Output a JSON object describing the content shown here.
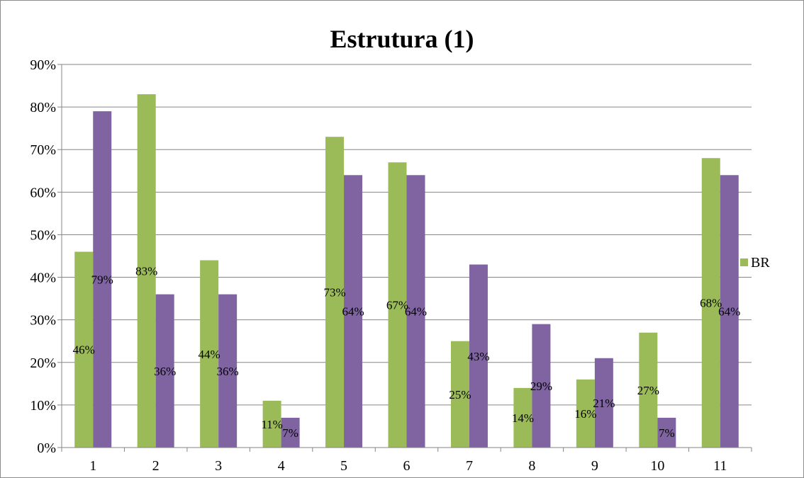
{
  "chart_data": {
    "type": "bar",
    "title": "Estrutura (1)",
    "xlabel": "",
    "ylabel": "",
    "categories": [
      "1",
      "2",
      "3",
      "4",
      "5",
      "6",
      "7",
      "8",
      "9",
      "10",
      "11"
    ],
    "series": [
      {
        "name": "BR",
        "color": "#9bbb59",
        "values": [
          0.46,
          0.83,
          0.44,
          0.11,
          0.73,
          0.67,
          0.25,
          0.14,
          0.16,
          0.27,
          0.68
        ],
        "labels": [
          "46%",
          "83%",
          "44%",
          "11%",
          "73%",
          "67%",
          "25%",
          "14%",
          "16%",
          "27%",
          "68%"
        ]
      },
      {
        "name": "",
        "color": "#8064a2",
        "values": [
          0.79,
          0.36,
          0.36,
          0.07,
          0.64,
          0.64,
          0.43,
          0.29,
          0.21,
          0.07,
          0.64
        ],
        "labels": [
          "79%",
          "36%",
          "36%",
          "7%",
          "64%",
          "64%",
          "43%",
          "29%",
          "21%",
          "7%",
          "64%"
        ]
      }
    ],
    "ylim": [
      0,
      0.9
    ],
    "yticks": [
      "0%",
      "10%",
      "20%",
      "30%",
      "40%",
      "50%",
      "60%",
      "70%",
      "80%",
      "90%"
    ],
    "grid": true,
    "legend": "right",
    "legend_entries": [
      "BR"
    ]
  }
}
